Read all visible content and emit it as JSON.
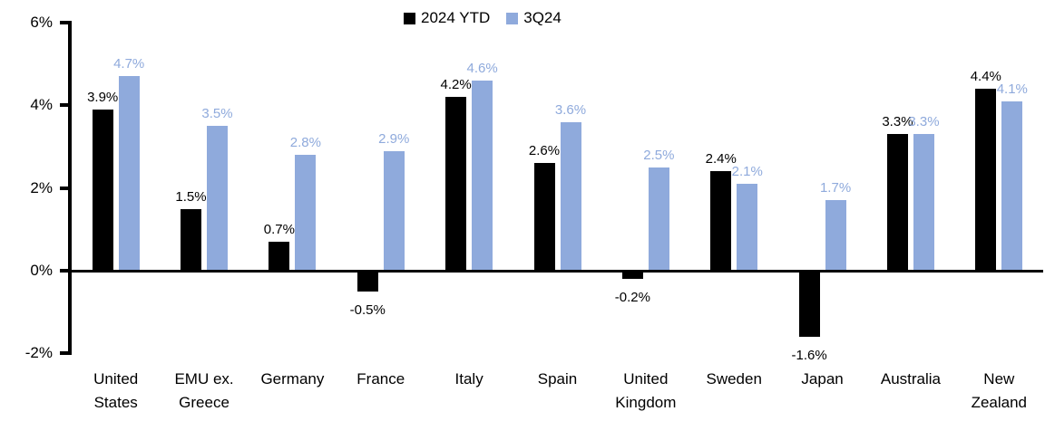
{
  "chart_data": {
    "type": "bar",
    "title": "",
    "categories": [
      "United States",
      "EMU ex. Greece",
      "Germany",
      "France",
      "Italy",
      "Spain",
      "United Kingdom",
      "Sweden",
      "Japan",
      "Australia",
      "New Zealand"
    ],
    "categories_wrapped": [
      [
        "United",
        "States"
      ],
      [
        "EMU ex.",
        "Greece"
      ],
      [
        "Germany"
      ],
      [
        "France"
      ],
      [
        "Italy"
      ],
      [
        "Spain"
      ],
      [
        "United",
        "Kingdom"
      ],
      [
        "Sweden"
      ],
      [
        "Japan"
      ],
      [
        "Australia"
      ],
      [
        "New",
        "Zealand"
      ]
    ],
    "series": [
      {
        "name": "2024 YTD",
        "color": "#000000",
        "values": [
          3.9,
          1.5,
          0.7,
          -0.5,
          4.2,
          2.6,
          -0.2,
          2.4,
          -1.6,
          3.3,
          4.4
        ],
        "labels": [
          "3.9%",
          "1.5%",
          "0.7%",
          "-0.5%",
          "4.2%",
          "2.6%",
          "-0.2%",
          "2.4%",
          "-1.6%",
          "3.3%",
          "4.4%"
        ]
      },
      {
        "name": "3Q24",
        "color": "#8FAADC",
        "values": [
          4.7,
          3.5,
          2.8,
          2.9,
          4.6,
          3.6,
          2.5,
          2.1,
          1.7,
          3.3,
          4.1
        ],
        "labels": [
          "4.7%",
          "3.5%",
          "2.8%",
          "2.9%",
          "4.6%",
          "3.6%",
          "2.5%",
          "2.1%",
          "1.7%",
          "3.3%",
          "4.1%"
        ]
      }
    ],
    "y_axis": {
      "min": -2,
      "max": 6,
      "tick_step": 2,
      "tick_values": [
        6,
        4,
        2,
        0,
        -2
      ],
      "tick_labels": [
        "6%",
        "4%",
        "2%",
        "0%",
        "-2%"
      ]
    },
    "legend_position": "top-center",
    "grid": false,
    "axis_color": "#000000",
    "background_color": "#FFFFFF"
  }
}
